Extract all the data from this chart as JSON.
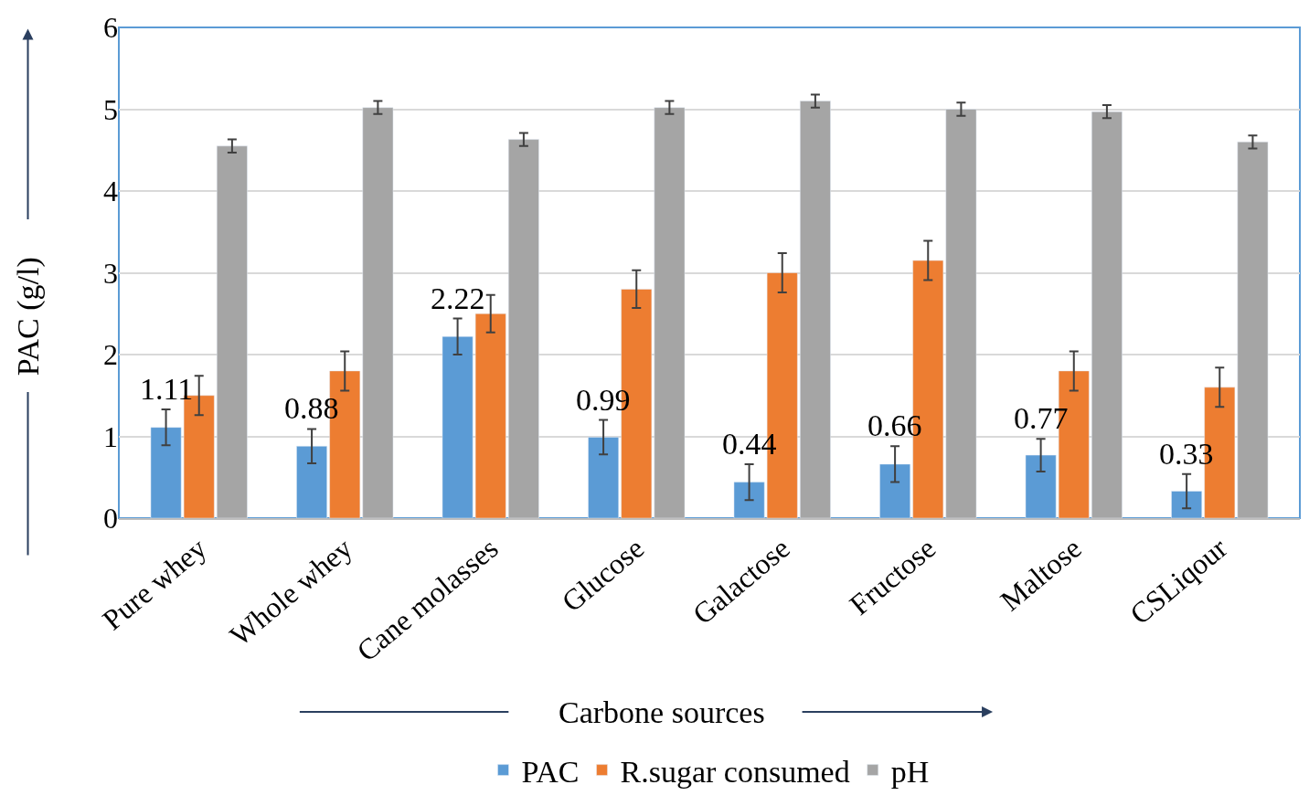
{
  "chart_data": {
    "type": "bar",
    "xlabel": "Carbone sources",
    "ylabel": "PAC (g/l)",
    "categories": [
      "Pure whey",
      "Whole whey",
      "Cane molasses",
      "Glucose",
      "Galactose",
      "Fructose",
      "Maltose",
      "CSLiqour"
    ],
    "series": [
      {
        "name": "PAC",
        "color": "#5b9bd5",
        "values": [
          1.11,
          0.88,
          2.22,
          0.99,
          0.44,
          0.66,
          0.77,
          0.33
        ],
        "errors": [
          0.22,
          0.21,
          0.22,
          0.21,
          0.22,
          0.22,
          0.2,
          0.21
        ],
        "value_labels": [
          "1.11",
          "0.88",
          "2.22",
          "0.99",
          "0.44",
          "0.66",
          "0.77",
          "0.33"
        ]
      },
      {
        "name": "R.sugar consumed",
        "color": "#ed7d31",
        "values": [
          1.5,
          1.8,
          2.5,
          2.8,
          3.0,
          3.15,
          1.8,
          1.6
        ],
        "errors": [
          0.24,
          0.24,
          0.23,
          0.23,
          0.24,
          0.24,
          0.24,
          0.24
        ]
      },
      {
        "name": "pH",
        "color": "#a5a5a5",
        "values": [
          4.55,
          5.02,
          4.63,
          5.02,
          5.1,
          5.0,
          4.97,
          4.6
        ],
        "errors": [
          0.08,
          0.08,
          0.08,
          0.08,
          0.08,
          0.08,
          0.08,
          0.08
        ]
      }
    ],
    "ylim": [
      0,
      6
    ],
    "yticks": [
      0,
      1,
      2,
      3,
      4,
      5,
      6
    ],
    "grid": "y",
    "legend": "bottom"
  }
}
